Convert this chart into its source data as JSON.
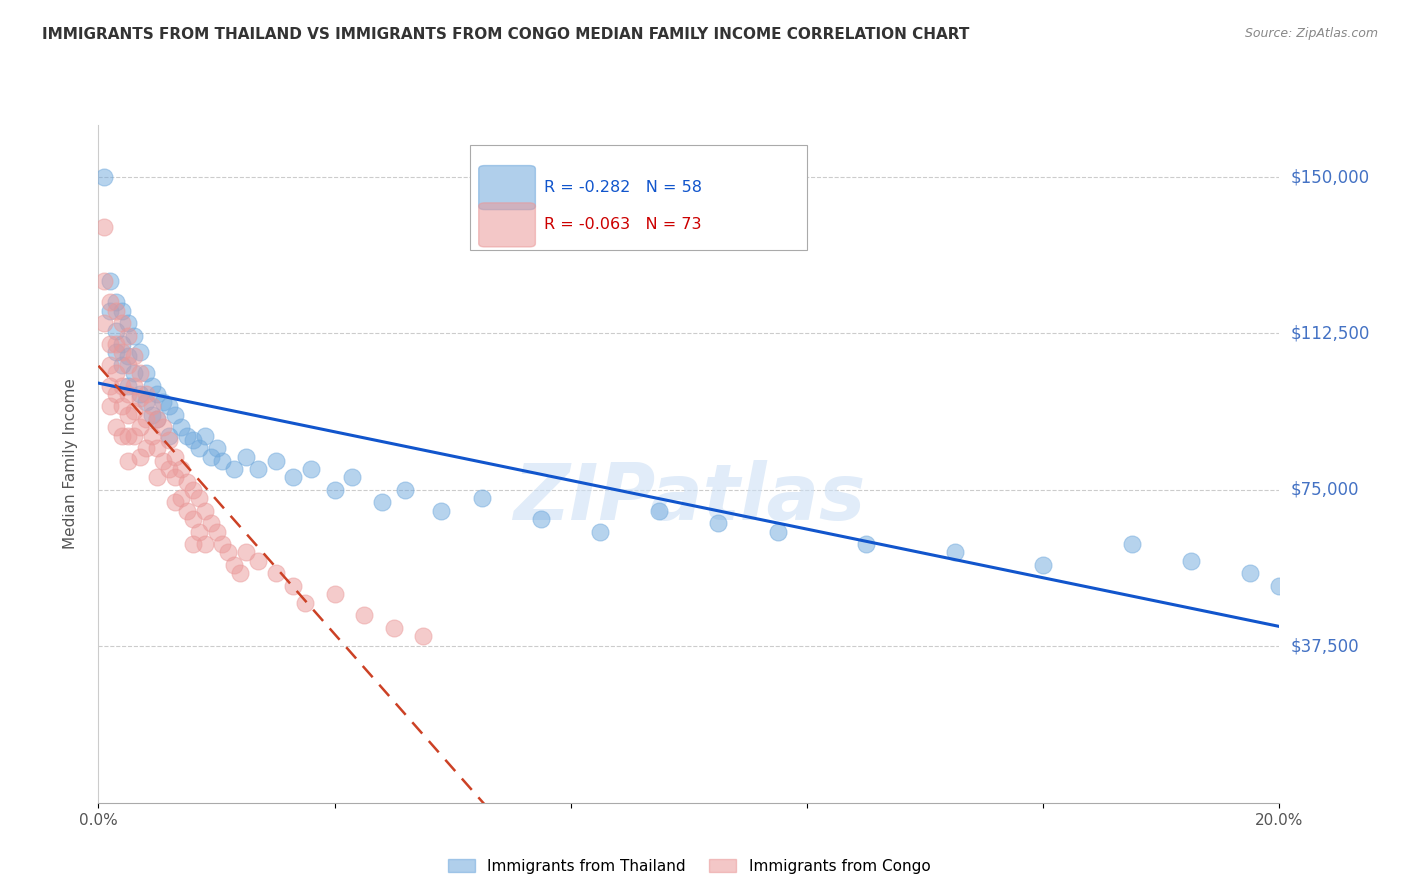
{
  "title": "IMMIGRANTS FROM THAILAND VS IMMIGRANTS FROM CONGO MEDIAN FAMILY INCOME CORRELATION CHART",
  "source": "Source: ZipAtlas.com",
  "ylabel": "Median Family Income",
  "xlim": [
    0.0,
    0.2
  ],
  "ylim": [
    0,
    162500
  ],
  "yticks": [
    37500,
    75000,
    112500,
    150000
  ],
  "ytick_labels": [
    "$37,500",
    "$75,000",
    "$112,500",
    "$150,000"
  ],
  "xticks": [
    0.0,
    0.04,
    0.08,
    0.12,
    0.16,
    0.2
  ],
  "xtick_labels": [
    "0.0%",
    "",
    "",
    "",
    "",
    "20.0%"
  ],
  "watermark": "ZIPatlas",
  "legend_r_thailand": "-0.282",
  "legend_n_thailand": "58",
  "legend_r_congo": "-0.063",
  "legend_n_congo": "73",
  "thailand_color": "#6fa8dc",
  "congo_color": "#ea9999",
  "trendline_thailand_color": "#1155cc",
  "trendline_congo_color": "#cc4125",
  "thailand_x": [
    0.001,
    0.002,
    0.002,
    0.003,
    0.003,
    0.003,
    0.004,
    0.004,
    0.004,
    0.005,
    0.005,
    0.005,
    0.006,
    0.006,
    0.007,
    0.007,
    0.008,
    0.008,
    0.009,
    0.009,
    0.01,
    0.01,
    0.011,
    0.012,
    0.012,
    0.013,
    0.014,
    0.015,
    0.016,
    0.017,
    0.018,
    0.019,
    0.02,
    0.021,
    0.023,
    0.025,
    0.027,
    0.03,
    0.033,
    0.036,
    0.04,
    0.043,
    0.048,
    0.052,
    0.058,
    0.065,
    0.075,
    0.085,
    0.095,
    0.105,
    0.115,
    0.13,
    0.145,
    0.16,
    0.175,
    0.185,
    0.195,
    0.2
  ],
  "thailand_y": [
    150000,
    125000,
    118000,
    120000,
    113000,
    108000,
    118000,
    110000,
    105000,
    115000,
    107000,
    100000,
    112000,
    103000,
    108000,
    98000,
    103000,
    96000,
    100000,
    93000,
    98000,
    92000,
    96000,
    95000,
    88000,
    93000,
    90000,
    88000,
    87000,
    85000,
    88000,
    83000,
    85000,
    82000,
    80000,
    83000,
    80000,
    82000,
    78000,
    80000,
    75000,
    78000,
    72000,
    75000,
    70000,
    73000,
    68000,
    65000,
    70000,
    67000,
    65000,
    62000,
    60000,
    57000,
    62000,
    58000,
    55000,
    52000
  ],
  "congo_x": [
    0.001,
    0.001,
    0.001,
    0.002,
    0.002,
    0.002,
    0.002,
    0.002,
    0.003,
    0.003,
    0.003,
    0.003,
    0.003,
    0.004,
    0.004,
    0.004,
    0.004,
    0.004,
    0.005,
    0.005,
    0.005,
    0.005,
    0.005,
    0.005,
    0.006,
    0.006,
    0.006,
    0.006,
    0.007,
    0.007,
    0.007,
    0.007,
    0.008,
    0.008,
    0.008,
    0.009,
    0.009,
    0.01,
    0.01,
    0.01,
    0.011,
    0.011,
    0.012,
    0.012,
    0.013,
    0.013,
    0.013,
    0.014,
    0.014,
    0.015,
    0.015,
    0.016,
    0.016,
    0.016,
    0.017,
    0.017,
    0.018,
    0.018,
    0.019,
    0.02,
    0.021,
    0.022,
    0.023,
    0.024,
    0.025,
    0.027,
    0.03,
    0.033,
    0.035,
    0.04,
    0.045,
    0.05,
    0.055
  ],
  "congo_y": [
    138000,
    125000,
    115000,
    120000,
    110000,
    105000,
    100000,
    95000,
    118000,
    110000,
    103000,
    98000,
    90000,
    115000,
    108000,
    100000,
    95000,
    88000,
    112000,
    105000,
    98000,
    93000,
    88000,
    82000,
    107000,
    100000,
    94000,
    88000,
    103000,
    97000,
    90000,
    83000,
    98000,
    92000,
    85000,
    95000,
    88000,
    92000,
    85000,
    78000,
    90000,
    82000,
    87000,
    80000,
    83000,
    78000,
    72000,
    80000,
    73000,
    77000,
    70000,
    75000,
    68000,
    62000,
    73000,
    65000,
    70000,
    62000,
    67000,
    65000,
    62000,
    60000,
    57000,
    55000,
    60000,
    58000,
    55000,
    52000,
    48000,
    50000,
    45000,
    42000,
    40000
  ]
}
